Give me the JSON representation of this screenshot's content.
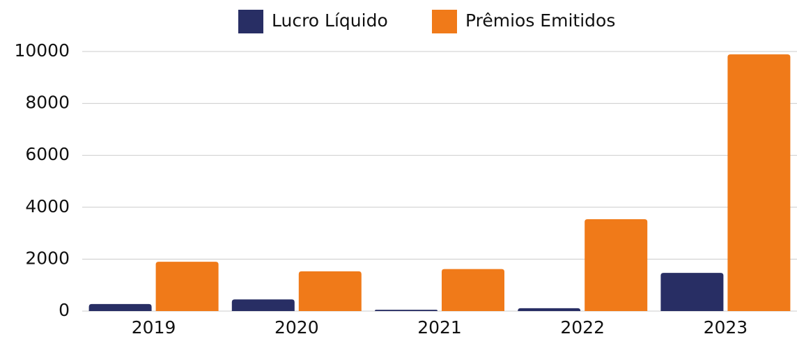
{
  "chart_data": {
    "type": "bar",
    "categories": [
      "2019",
      "2020",
      "2021",
      "2022",
      "2023"
    ],
    "series": [
      {
        "name": "Lucro Líquido",
        "color": "#282e64",
        "values": [
          270,
          450,
          50,
          110,
          1470
        ]
      },
      {
        "name": "Prêmios Emitidos",
        "color": "#f07a19",
        "values": [
          1900,
          1530,
          1620,
          3540,
          9890
        ]
      }
    ],
    "ylim": [
      0,
      10000
    ],
    "yticks": [
      0,
      2000,
      4000,
      6000,
      8000,
      10000
    ],
    "grid": true,
    "legend": "top"
  }
}
